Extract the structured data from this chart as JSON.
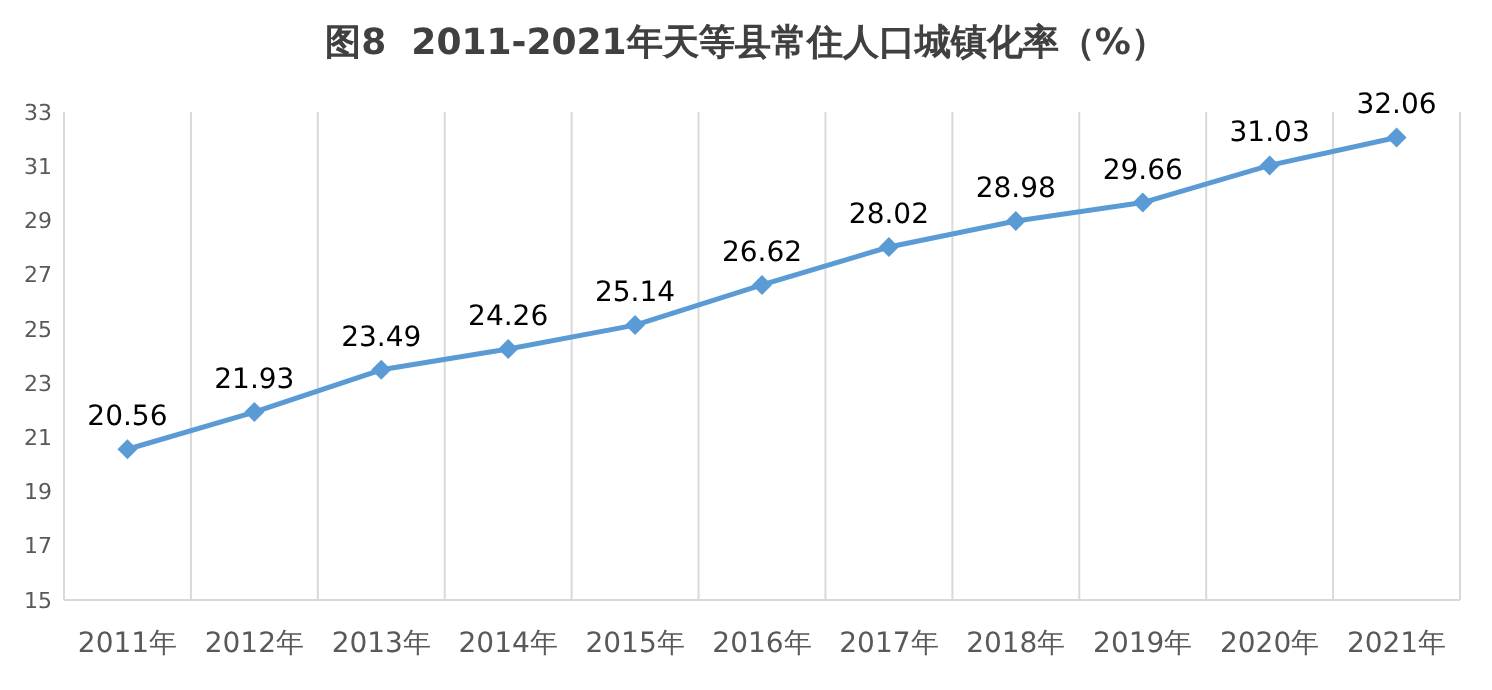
{
  "chart_data": {
    "type": "line",
    "title": "图8  2011-2021年天等县常住人口城镇化率（%）",
    "categories": [
      "2011年",
      "2012年",
      "2013年",
      "2014年",
      "2015年",
      "2016年",
      "2017年",
      "2018年",
      "2019年",
      "2020年",
      "2021年"
    ],
    "series": [
      {
        "color": "#5b9bd5",
        "values": [
          20.56,
          21.93,
          23.49,
          24.26,
          25.14,
          26.62,
          28.02,
          28.98,
          29.66,
          31.03,
          32.06
        ]
      }
    ],
    "ylim": [
      15,
      33
    ],
    "yticks": [
      15,
      17,
      19,
      21,
      23,
      25,
      27,
      29,
      31,
      33
    ],
    "grid": "x",
    "marker": "diamond",
    "line_style": "solid",
    "data_labels": true
  }
}
